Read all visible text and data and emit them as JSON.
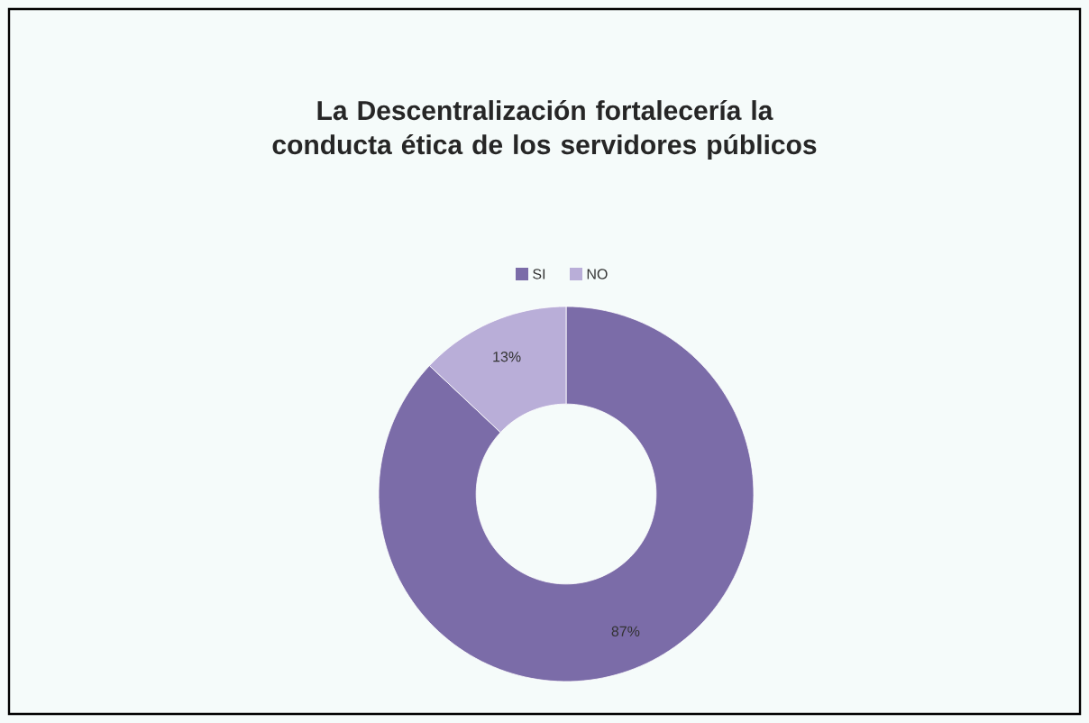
{
  "chart_data": {
    "type": "donut",
    "title": "La Descentralización fortalecería la conducta ética de los servidores públicos",
    "categories": [
      "SI",
      "NO"
    ],
    "values": [
      87,
      13
    ],
    "colors": [
      "#7b6ca8",
      "#b9aed8"
    ],
    "value_labels": [
      "87%",
      "13%"
    ],
    "legend": "top"
  }
}
